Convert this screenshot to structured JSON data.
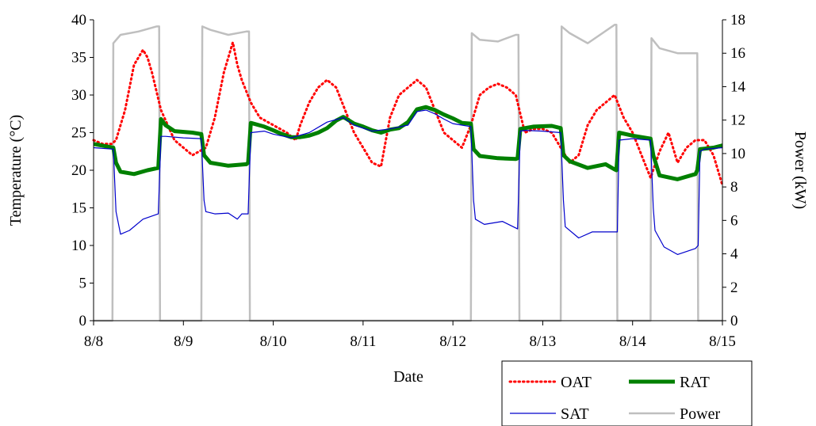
{
  "chart_data": {
    "type": "line",
    "title": "",
    "xlabel": "Date",
    "ylabel_left": "Temperature (°C)",
    "ylabel_right": "Power (kW)",
    "x_ticks": [
      "8/8",
      "8/9",
      "8/10",
      "8/11",
      "8/12",
      "8/13",
      "8/14",
      "8/15"
    ],
    "x_range_days": [
      0,
      7
    ],
    "ylim_left": [
      0,
      40
    ],
    "ylim_right": [
      0,
      18
    ],
    "y_ticks_left": [
      "0",
      "5",
      "10",
      "15",
      "20",
      "25",
      "30",
      "35",
      "40"
    ],
    "y_ticks_right": [
      "0",
      "2",
      "4",
      "6",
      "8",
      "10",
      "12",
      "14",
      "16",
      "18"
    ],
    "grid": false,
    "legend_position": "bottom-right",
    "series": [
      {
        "name": "OAT",
        "axis": "left",
        "color": "#ff0000",
        "style": "dotted",
        "x": [
          0,
          0.1,
          0.2,
          0.25,
          0.35,
          0.45,
          0.55,
          0.6,
          0.65,
          0.75,
          0.9,
          1.1,
          1.25,
          1.35,
          1.45,
          1.55,
          1.6,
          1.65,
          1.75,
          1.85,
          2.0,
          2.15,
          2.25,
          2.3,
          2.4,
          2.5,
          2.6,
          2.7,
          2.8,
          2.9,
          3.0,
          3.1,
          3.2,
          3.3,
          3.4,
          3.5,
          3.6,
          3.7,
          3.8,
          3.9,
          4.0,
          4.1,
          4.2,
          4.3,
          4.4,
          4.5,
          4.6,
          4.7,
          4.8,
          4.9,
          5.0,
          5.1,
          5.2,
          5.3,
          5.4,
          5.5,
          5.6,
          5.7,
          5.8,
          5.9,
          6.0,
          6.1,
          6.2,
          6.3,
          6.4,
          6.5,
          6.6,
          6.7,
          6.8,
          6.9,
          7.0
        ],
        "values": [
          24,
          23.5,
          23.5,
          24,
          28,
          34,
          36,
          35,
          33,
          28,
          24,
          22,
          23,
          27,
          33,
          37,
          34,
          32,
          29,
          27,
          26,
          25,
          24,
          26,
          29,
          31,
          32,
          31,
          28,
          25,
          23,
          21,
          20.5,
          27,
          30,
          31,
          32,
          31,
          28,
          25,
          24,
          23,
          26,
          30,
          31,
          31.5,
          31,
          30,
          25,
          25.5,
          25.5,
          25,
          23,
          21,
          22,
          26,
          28,
          29,
          30,
          27,
          25,
          22,
          19,
          22.5,
          25,
          21,
          23,
          24,
          24,
          22,
          18
        ]
      },
      {
        "name": "RAT",
        "axis": "left",
        "color": "#008000",
        "style": "thick",
        "x": [
          0,
          0.22,
          0.25,
          0.3,
          0.45,
          0.6,
          0.72,
          0.75,
          0.8,
          0.9,
          1.1,
          1.2,
          1.23,
          1.3,
          1.5,
          1.7,
          1.72,
          1.75,
          1.9,
          2.0,
          2.1,
          2.2,
          2.3,
          2.4,
          2.5,
          2.6,
          2.7,
          2.78,
          2.9,
          3.0,
          3.1,
          3.2,
          3.3,
          3.4,
          3.5,
          3.6,
          3.7,
          3.8,
          3.9,
          4.0,
          4.1,
          4.2,
          4.23,
          4.3,
          4.5,
          4.7,
          4.72,
          4.75,
          4.9,
          5.1,
          5.2,
          5.23,
          5.3,
          5.5,
          5.7,
          5.8,
          5.82,
          5.85,
          6.0,
          6.2,
          6.23,
          6.3,
          6.5,
          6.7,
          6.72,
          6.75,
          6.9,
          7.0
        ],
        "values": [
          23.5,
          23,
          21,
          19.8,
          19.5,
          20,
          20.3,
          26.8,
          26,
          25.2,
          25,
          24.8,
          22,
          21,
          20.6,
          20.8,
          21,
          26.3,
          25.8,
          25.3,
          24.8,
          24.4,
          24.4,
          24.6,
          25,
          25.6,
          26.6,
          27.1,
          26.2,
          25.8,
          25.3,
          25,
          25.4,
          25.6,
          26.4,
          28.1,
          28.4,
          28,
          27.4,
          26.9,
          26.3,
          26.2,
          22.8,
          21.9,
          21.6,
          21.5,
          21.6,
          25.5,
          25.8,
          25.9,
          25.6,
          22,
          21.2,
          20.3,
          20.8,
          20.1,
          20,
          25,
          24.6,
          24.2,
          22,
          19.3,
          18.8,
          19.5,
          20,
          22.8,
          23,
          23.3
        ]
      },
      {
        "name": "SAT",
        "axis": "left",
        "color": "#0000cc",
        "style": "thin",
        "x": [
          0,
          0.22,
          0.25,
          0.3,
          0.4,
          0.55,
          0.72,
          0.75,
          0.8,
          1.0,
          1.2,
          1.23,
          1.25,
          1.35,
          1.5,
          1.6,
          1.65,
          1.72,
          1.75,
          1.9,
          2.0,
          2.2,
          2.4,
          2.6,
          2.78,
          2.9,
          3.1,
          3.3,
          3.5,
          3.6,
          3.7,
          3.8,
          3.9,
          4.0,
          4.1,
          4.2,
          4.23,
          4.25,
          4.35,
          4.55,
          4.72,
          4.75,
          4.8,
          5.0,
          5.2,
          5.23,
          5.25,
          5.4,
          5.55,
          5.8,
          5.83,
          5.85,
          6.0,
          6.2,
          6.23,
          6.25,
          6.35,
          6.5,
          6.7,
          6.73,
          6.75,
          6.8,
          7.0
        ],
        "values": [
          23,
          22.8,
          14.5,
          11.5,
          12,
          13.5,
          14.2,
          24.5,
          24.5,
          24.3,
          24.2,
          16,
          14.5,
          14.2,
          14.3,
          13.5,
          14.2,
          14.2,
          25,
          25.2,
          24.8,
          24.3,
          25,
          26.4,
          27,
          26,
          25.2,
          25.5,
          26,
          27.8,
          28,
          27.5,
          26.8,
          26.2,
          26,
          25.8,
          16,
          13.5,
          12.8,
          13.2,
          12.2,
          25.2,
          25.3,
          25.2,
          25,
          16,
          12.5,
          11,
          11.8,
          11.8,
          11.8,
          24,
          24.2,
          24,
          15,
          12,
          9.8,
          8.8,
          9.6,
          10,
          22.5,
          22.8,
          23
        ]
      },
      {
        "name": "Power",
        "axis": "right",
        "color": "#bfbfbf",
        "style": "solid",
        "x": [
          0,
          0.21,
          0.22,
          0.3,
          0.5,
          0.7,
          0.73,
          0.74,
          1.2,
          1.21,
          1.3,
          1.5,
          1.7,
          1.73,
          1.74,
          4.2,
          4.21,
          4.3,
          4.5,
          4.7,
          4.73,
          4.74,
          5.2,
          5.21,
          5.3,
          5.5,
          5.8,
          5.82,
          5.83,
          6.2,
          6.21,
          6.3,
          6.5,
          6.7,
          6.72,
          6.73,
          7.0
        ],
        "values": [
          0,
          0,
          16.6,
          17.1,
          17.3,
          17.6,
          17.6,
          0,
          0,
          17.6,
          17.4,
          17.1,
          17.3,
          17.3,
          0,
          0,
          17.2,
          16.8,
          16.7,
          17.1,
          17.1,
          0,
          0,
          17.6,
          17.2,
          16.6,
          17.7,
          17.7,
          0,
          0,
          16.9,
          16.3,
          16.0,
          16.0,
          16.0,
          0,
          0
        ]
      }
    ]
  }
}
